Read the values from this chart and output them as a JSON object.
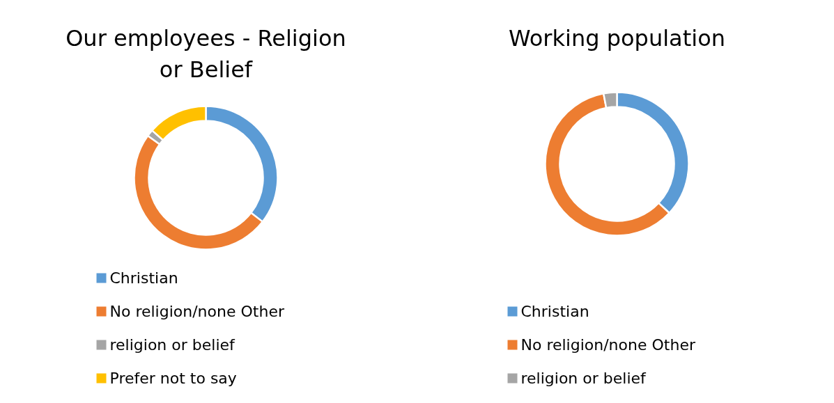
{
  "chart_data": [
    {
      "type": "donut",
      "title": "Our employees - Religion\nor Belief",
      "categories": [
        "Christian",
        "No religion/none Other",
        "religion or belief",
        "Prefer not to say"
      ],
      "values": [
        35.5,
        49.5,
        1.5,
        13.5
      ],
      "colors": [
        "#5b9bd5",
        "#ed7d31",
        "#a5a5a5",
        "#ffc000"
      ],
      "legend": "bottom"
    },
    {
      "type": "donut",
      "title": "Working population",
      "categories": [
        "Christian",
        "No religion/none Other",
        "religion or belief"
      ],
      "values": [
        37,
        60,
        3
      ],
      "colors": [
        "#5b9bd5",
        "#ed7d31",
        "#a5a5a5"
      ],
      "legend": "bottom"
    }
  ]
}
